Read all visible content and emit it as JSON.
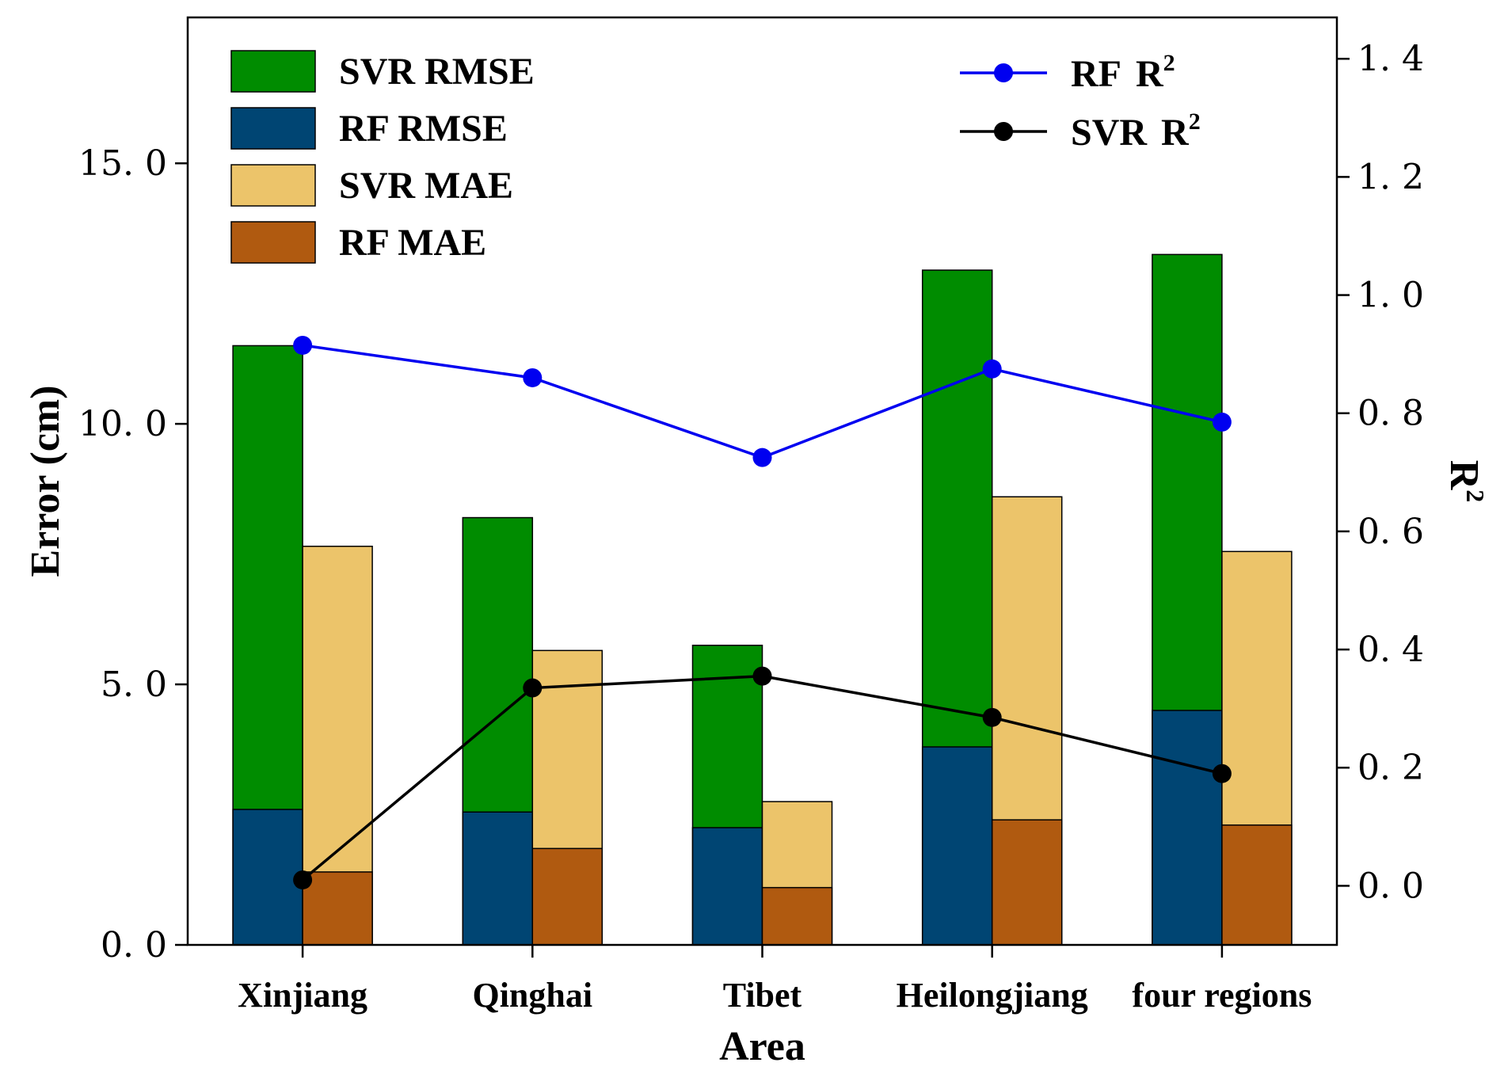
{
  "chart_data": {
    "type": "bar+line",
    "categories": [
      "Xinjiang",
      "Qinghai",
      "Tibet",
      "Heilongjiang",
      "four regions"
    ],
    "xlabel": "Area",
    "ylabel": "Error (cm)",
    "y2label": "R",
    "y2label_sup": "2",
    "ylim": [
      0,
      17.8
    ],
    "y2lim": [
      -0.1,
      1.47
    ],
    "yticks": [
      0,
      5,
      10,
      15
    ],
    "yticklabels": [
      "0. 0",
      "5. 0",
      "10. 0",
      "15. 0"
    ],
    "y2ticks": [
      0,
      0.2,
      0.4,
      0.6,
      0.8,
      1.0,
      1.2,
      1.4
    ],
    "y2ticklabels": [
      "0. 0",
      "0. 2",
      "0. 4",
      "0. 6",
      "0. 8",
      "1. 0",
      "1. 2",
      "1. 4"
    ],
    "bar_series": [
      {
        "name": "SVR  RMSE",
        "group": "RMSE",
        "color": "#008C00",
        "values": [
          11.5,
          8.2,
          5.75,
          12.95,
          13.25
        ]
      },
      {
        "name": "RF  RMSE",
        "group": "RMSE",
        "color": "#004573",
        "values": [
          2.6,
          2.55,
          2.25,
          3.8,
          4.5
        ]
      },
      {
        "name": "SVR  MAE",
        "group": "MAE",
        "color": "#ECC46A",
        "values": [
          7.65,
          5.65,
          2.75,
          8.6,
          7.55
        ]
      },
      {
        "name": "RF  MAE",
        "group": "MAE",
        "color": "#B05A10",
        "values": [
          1.4,
          1.85,
          1.1,
          2.4,
          2.3
        ]
      }
    ],
    "line_series": [
      {
        "name": "RF",
        "sup": "2",
        "suffix": "R",
        "color": "#0000F0",
        "values": [
          0.915,
          0.86,
          0.725,
          0.875,
          0.785
        ]
      },
      {
        "name": "SVR",
        "sup": "2",
        "suffix": "R",
        "color": "#000000",
        "values": [
          0.01,
          0.335,
          0.355,
          0.285,
          0.19
        ]
      }
    ]
  }
}
